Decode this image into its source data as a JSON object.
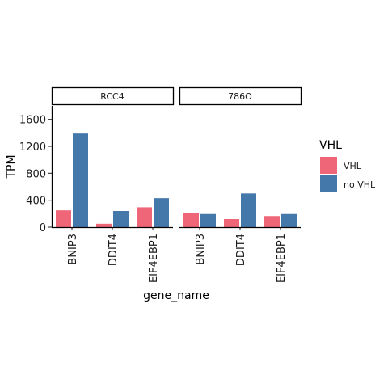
{
  "chart_data": {
    "type": "bar",
    "title": "",
    "xlabel": "gene_name",
    "ylabel": "TPM",
    "ylim": [
      0,
      1800
    ],
    "yticks": [
      0,
      400,
      800,
      1200,
      1600
    ],
    "categories": [
      "BNIP3",
      "DDIT4",
      "EIF4EBP1"
    ],
    "legend": {
      "title": "VHL",
      "placement": "right",
      "entries": [
        {
          "name": "VHL",
          "color": "#EE6677"
        },
        {
          "name": "no VHL",
          "color": "#4477AA"
        }
      ]
    },
    "panels": [
      {
        "strip": "RCC4",
        "series": [
          {
            "name": "VHL",
            "values": [
              250,
              50,
              295
            ]
          },
          {
            "name": "no VHL",
            "values": [
              1390,
              240,
              430
            ]
          }
        ]
      },
      {
        "strip": "786O",
        "series": [
          {
            "name": "VHL",
            "values": [
              205,
              120,
              165
            ]
          },
          {
            "name": "no VHL",
            "values": [
              195,
              500,
              195
            ]
          }
        ]
      }
    ]
  }
}
